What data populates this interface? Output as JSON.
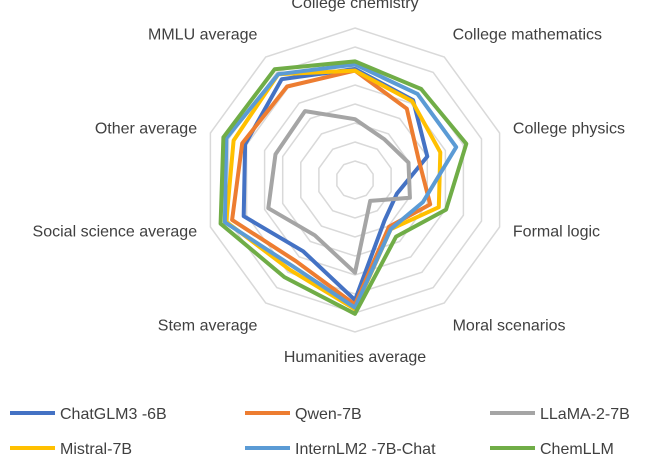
{
  "chart_data": {
    "type": "radar",
    "axes": [
      "College chemistry",
      "College mathematics",
      "College physics",
      "Formal logic",
      "Moral scenarios",
      "Humanities average",
      "Stem average",
      "Social science average",
      "Other average",
      "MMLU average"
    ],
    "range": [
      0,
      1
    ],
    "grid": true,
    "legend_position": "bottom",
    "series": [
      {
        "name": "ChatGLM3 -6B",
        "color": "#4472c4",
        "values": [
          0.73,
          0.65,
          0.5,
          0.29,
          0.33,
          0.79,
          0.58,
          0.77,
          0.76,
          0.82
        ]
      },
      {
        "name": "Qwen-7B",
        "color": "#ed7d31",
        "values": [
          0.72,
          0.58,
          0.44,
          0.52,
          0.38,
          0.82,
          0.66,
          0.85,
          0.78,
          0.76
        ]
      },
      {
        "name": "LLaMA-2-7B",
        "color": "#a5a5a5",
        "values": [
          0.4,
          0.33,
          0.37,
          0.38,
          0.17,
          0.61,
          0.45,
          0.6,
          0.55,
          0.56
        ]
      },
      {
        "name": "Mistral-7B",
        "color": "#ffc000",
        "values": [
          0.72,
          0.64,
          0.59,
          0.58,
          0.4,
          0.85,
          0.73,
          0.89,
          0.84,
          0.86
        ]
      },
      {
        "name": "InternLM2 -7B-Chat",
        "color": "#5b9bd5",
        "values": [
          0.76,
          0.7,
          0.7,
          0.47,
          0.4,
          0.84,
          0.7,
          0.9,
          0.89,
          0.86
        ]
      },
      {
        "name": "ChemLLM",
        "color": "#70ad47",
        "values": [
          0.78,
          0.74,
          0.77,
          0.63,
          0.46,
          0.88,
          0.79,
          0.93,
          0.91,
          0.9
        ]
      }
    ]
  }
}
